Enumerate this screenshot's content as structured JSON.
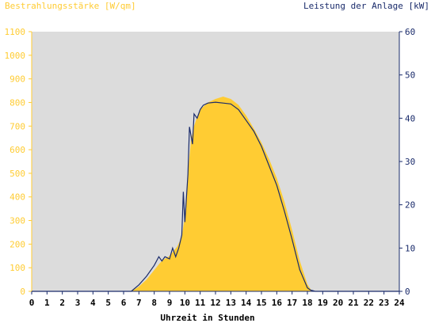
{
  "chart_data": {
    "type": "area",
    "title_left": "Bestrahlungsstärke [W/qm]",
    "title_right": "Leistung der Anlage [kW]",
    "xlabel": "Uhrzeit in Stunden",
    "xlim": [
      0,
      24
    ],
    "x_ticks": [
      "0",
      "1",
      "2",
      "3",
      "4",
      "5",
      "6",
      "7",
      "8",
      "9",
      "10",
      "11",
      "12",
      "13",
      "14",
      "15",
      "16",
      "17",
      "18",
      "19",
      "20",
      "21",
      "22",
      "23",
      "24"
    ],
    "y_left": {
      "lim": [
        0,
        1100
      ],
      "ticks": [
        "0",
        "100",
        "200",
        "300",
        "400",
        "500",
        "600",
        "700",
        "800",
        "900",
        "1000",
        "1100"
      ],
      "color": "#ffcc33"
    },
    "y_right": {
      "lim": [
        0,
        60
      ],
      "ticks": [
        "0",
        "10",
        "20",
        "30",
        "40",
        "50",
        "60"
      ],
      "color": "#1a2b6b"
    },
    "plot_background": "#dcdcdc",
    "series": [
      {
        "axis": "left",
        "kind": "area",
        "color": "#ffcc33",
        "x": [
          6.5,
          7.0,
          7.5,
          8.0,
          8.5,
          9.0,
          9.5,
          9.8,
          10.0,
          10.2,
          10.4,
          10.6,
          10.8,
          11.0,
          11.5,
          12.0,
          12.5,
          13.0,
          13.5,
          14.0,
          14.5,
          15.0,
          15.5,
          16.0,
          16.5,
          17.0,
          17.5,
          18.0,
          18.3
        ],
        "y": [
          0,
          20,
          50,
          90,
          130,
          150,
          190,
          230,
          320,
          500,
          640,
          700,
          740,
          770,
          800,
          815,
          825,
          815,
          790,
          745,
          690,
          630,
          560,
          480,
          380,
          260,
          130,
          30,
          0
        ]
      },
      {
        "axis": "right",
        "kind": "line",
        "color": "#1a2b6b",
        "x": [
          0,
          6.5,
          7.0,
          7.5,
          8.0,
          8.3,
          8.5,
          8.7,
          9.0,
          9.2,
          9.4,
          9.6,
          9.8,
          9.9,
          10.0,
          10.2,
          10.3,
          10.5,
          10.6,
          10.8,
          11.0,
          11.2,
          11.5,
          12.0,
          12.5,
          13.0,
          13.5,
          14.0,
          14.5,
          15.0,
          15.5,
          16.0,
          16.5,
          17.0,
          17.5,
          18.0,
          18.2,
          18.5,
          24
        ],
        "y": [
          0,
          0,
          1.5,
          3.5,
          6,
          8,
          7,
          8,
          7.5,
          10,
          8,
          10,
          13,
          23,
          16,
          27,
          38,
          34,
          41,
          40,
          42,
          43,
          43.5,
          43.7,
          43.5,
          43.3,
          42,
          39.5,
          37,
          33.5,
          29,
          24.5,
          18.5,
          12,
          5,
          0.8,
          0.3,
          0,
          0
        ]
      }
    ]
  }
}
